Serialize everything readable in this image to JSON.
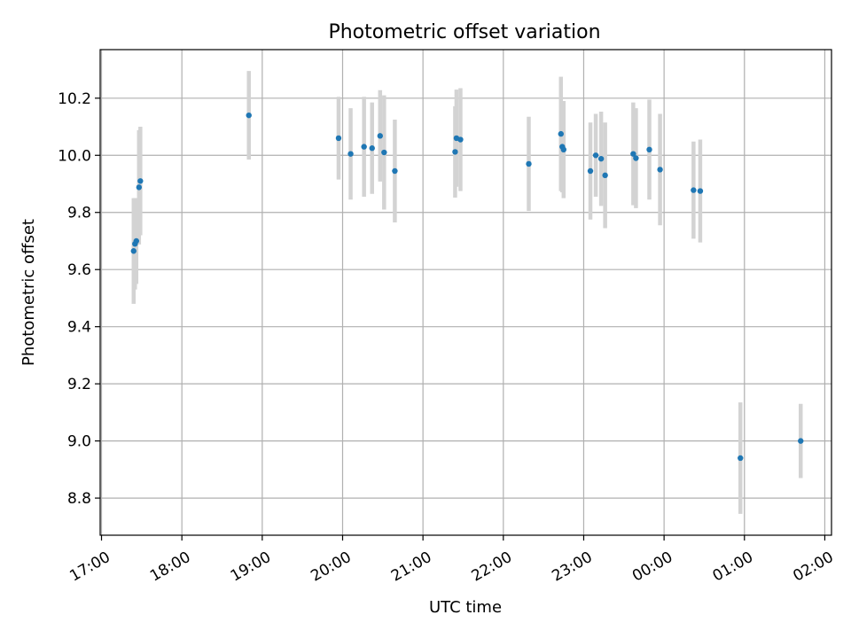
{
  "chart_data": {
    "type": "scatter",
    "title": "Photometric offset variation",
    "xlabel": "UTC time",
    "ylabel": "Photometric offset",
    "x_ticks": [
      "17:00",
      "18:00",
      "19:00",
      "20:00",
      "21:00",
      "22:00",
      "23:00",
      "00:00",
      "01:00",
      "02:00"
    ],
    "y_ticks": [
      "8.8",
      "9.0",
      "9.2",
      "9.4",
      "9.6",
      "9.8",
      "10.0",
      "10.2"
    ],
    "xlim": [
      "16:59",
      "02:05"
    ],
    "ylim": [
      8.67,
      10.37
    ],
    "grid": true,
    "colors": {
      "point": "#1f77b4",
      "errorbar": "#d3d3d3",
      "grid": "#b0b0b0"
    },
    "points": [
      {
        "x": "17:24",
        "y": 9.665,
        "err": 0.185
      },
      {
        "x": "17:25",
        "y": 9.69,
        "err": 0.16
      },
      {
        "x": "17:26",
        "y": 9.7,
        "err": 0.15
      },
      {
        "x": "17:28",
        "y": 9.888,
        "err": 0.2
      },
      {
        "x": "17:29",
        "y": 9.91,
        "err": 0.19
      },
      {
        "x": "18:50",
        "y": 10.14,
        "err": 0.155
      },
      {
        "x": "19:57",
        "y": 10.06,
        "err": 0.145
      },
      {
        "x": "20:06",
        "y": 10.005,
        "err": 0.16
      },
      {
        "x": "20:16",
        "y": 10.03,
        "err": 0.175
      },
      {
        "x": "20:22",
        "y": 10.025,
        "err": 0.16
      },
      {
        "x": "20:28",
        "y": 10.068,
        "err": 0.16
      },
      {
        "x": "20:31",
        "y": 10.01,
        "err": 0.2
      },
      {
        "x": "20:39",
        "y": 9.945,
        "err": 0.18
      },
      {
        "x": "21:24",
        "y": 10.012,
        "err": 0.16
      },
      {
        "x": "21:25",
        "y": 10.06,
        "err": 0.17
      },
      {
        "x": "21:28",
        "y": 10.055,
        "err": 0.18
      },
      {
        "x": "22:19",
        "y": 9.97,
        "err": 0.165
      },
      {
        "x": "22:43",
        "y": 10.075,
        "err": 0.2
      },
      {
        "x": "22:44",
        "y": 10.03,
        "err": 0.16
      },
      {
        "x": "22:45",
        "y": 10.02,
        "err": 0.17
      },
      {
        "x": "23:05",
        "y": 9.945,
        "err": 0.17
      },
      {
        "x": "23:09",
        "y": 10.0,
        "err": 0.145
      },
      {
        "x": "23:13",
        "y": 9.988,
        "err": 0.165
      },
      {
        "x": "23:16",
        "y": 9.93,
        "err": 0.185
      },
      {
        "x": "23:37",
        "y": 10.005,
        "err": 0.18
      },
      {
        "x": "23:39",
        "y": 9.99,
        "err": 0.175
      },
      {
        "x": "23:49",
        "y": 10.02,
        "err": 0.175
      },
      {
        "x": "23:57",
        "y": 9.95,
        "err": 0.195
      },
      {
        "x": "00:22",
        "y": 9.878,
        "err": 0.17
      },
      {
        "x": "00:27",
        "y": 9.875,
        "err": 0.18
      },
      {
        "x": "00:57",
        "y": 8.94,
        "err": 0.195
      },
      {
        "x": "01:42",
        "y": 9.0,
        "err": 0.13
      }
    ]
  }
}
